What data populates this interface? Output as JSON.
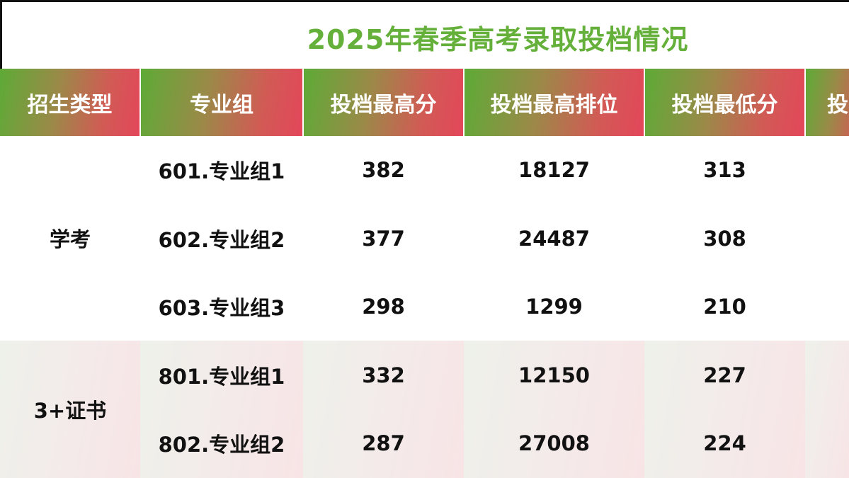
{
  "title": "2025年春季高考录取投档情况",
  "headers": [
    "招生类型",
    "专业组",
    "投档最高分",
    "投档最高排位",
    "投档最低分",
    "投"
  ],
  "groups": [
    {
      "type": "学考",
      "rows": [
        {
          "group": "601.专业组1",
          "max_score": "382",
          "max_rank": "18127",
          "min_score": "313"
        },
        {
          "group": "602.专业组2",
          "max_score": "377",
          "max_rank": "24487",
          "min_score": "308"
        },
        {
          "group": "603.专业组3",
          "max_score": "298",
          "max_rank": "1299",
          "min_score": "210"
        }
      ]
    },
    {
      "type": "3+证书",
      "rows": [
        {
          "group": "801.专业组1",
          "max_score": "332",
          "max_rank": "12150",
          "min_score": "227"
        },
        {
          "group": "802.专业组2",
          "max_score": "287",
          "max_rank": "27008",
          "min_score": "224"
        }
      ]
    }
  ],
  "colors": {
    "title": "#65b03a",
    "header_start": "#5dab36",
    "header_end": "#e3465a"
  }
}
